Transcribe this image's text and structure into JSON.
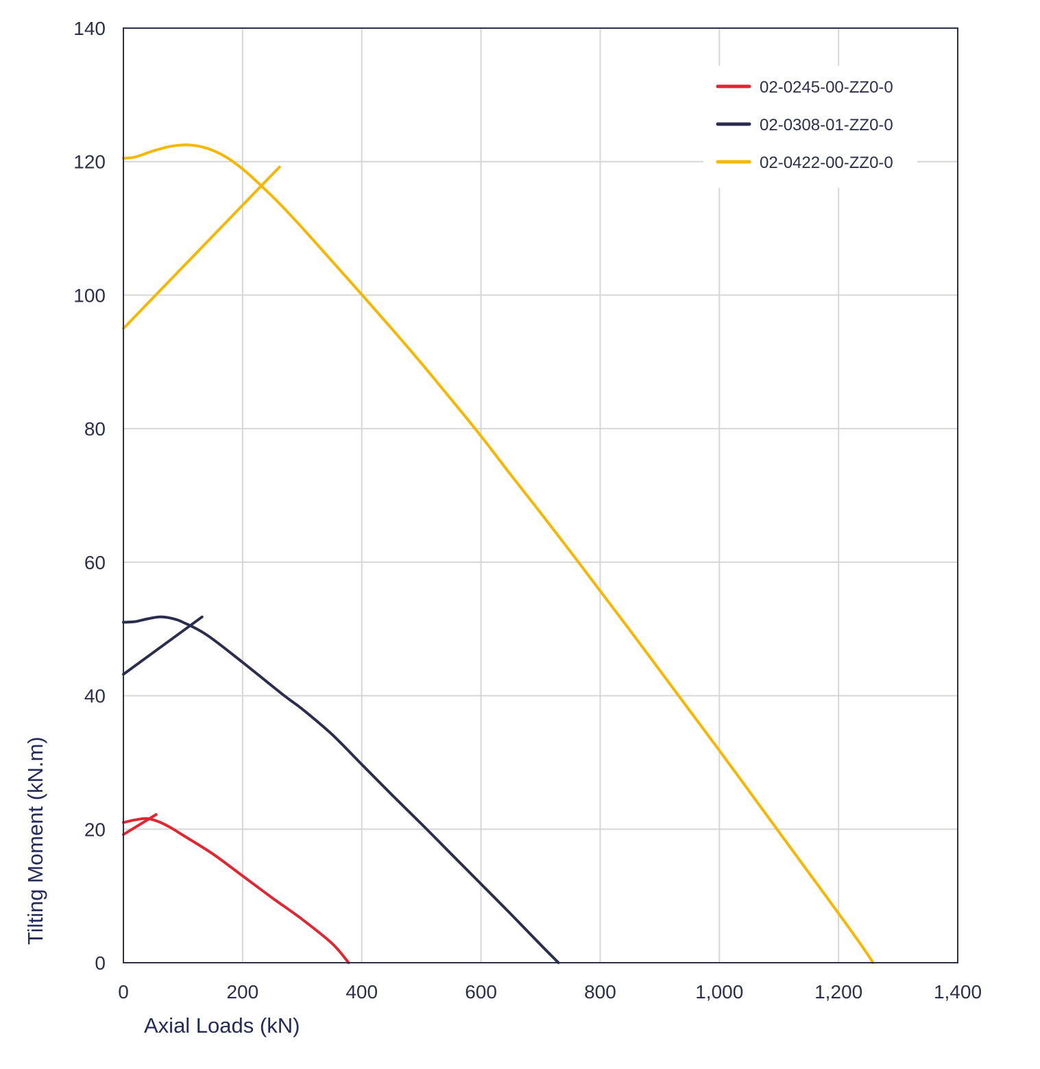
{
  "chart_data": {
    "type": "line",
    "title": "",
    "xlabel": "Axial Loads (kN)",
    "ylabel": "Tilting Moment (kN.m)",
    "xlim": [
      0,
      1400
    ],
    "ylim": [
      0,
      140
    ],
    "x_ticks": [
      "0",
      "200",
      "400",
      "600",
      "800",
      "1,000",
      "1,200",
      "1,400"
    ],
    "y_ticks": [
      "0",
      "20",
      "40",
      "60",
      "80",
      "100",
      "120",
      "140"
    ],
    "grid": true,
    "legend_position": "top-right",
    "series": [
      {
        "name": "02-0245-00-ZZ0-0",
        "color": "#e02630",
        "curve": [
          [
            0,
            21.0
          ],
          [
            20,
            21.4
          ],
          [
            40,
            21.6
          ],
          [
            60,
            21.1
          ],
          [
            80,
            20.2
          ],
          [
            100,
            19.1
          ],
          [
            150,
            16.3
          ],
          [
            200,
            13.0
          ],
          [
            250,
            9.7
          ],
          [
            300,
            6.5
          ],
          [
            350,
            2.9
          ],
          [
            378,
            0
          ]
        ],
        "limit_line": [
          [
            0,
            19.2
          ],
          [
            55,
            22.2
          ]
        ]
      },
      {
        "name": "02-0308-01-ZZ0-0",
        "color": "#2b2d4e",
        "curve": [
          [
            0,
            51.0
          ],
          [
            20,
            51.1
          ],
          [
            40,
            51.5
          ],
          [
            60,
            51.8
          ],
          [
            80,
            51.6
          ],
          [
            100,
            51.0
          ],
          [
            140,
            49.1
          ],
          [
            200,
            45.0
          ],
          [
            270,
            40.0
          ],
          [
            300,
            38.0
          ],
          [
            350,
            34.2
          ],
          [
            400,
            29.7
          ],
          [
            450,
            25.2
          ],
          [
            500,
            20.8
          ],
          [
            550,
            16.3
          ],
          [
            600,
            11.8
          ],
          [
            650,
            7.3
          ],
          [
            700,
            2.7
          ],
          [
            730,
            0
          ]
        ],
        "limit_line": [
          [
            0,
            43.2
          ],
          [
            132,
            51.8
          ]
        ]
      },
      {
        "name": "02-0422-00-ZZ0-0",
        "color": "#f5b700",
        "curve": [
          [
            0,
            120.5
          ],
          [
            20,
            120.7
          ],
          [
            50,
            121.6
          ],
          [
            80,
            122.3
          ],
          [
            110,
            122.5
          ],
          [
            140,
            122.0
          ],
          [
            170,
            120.8
          ],
          [
            200,
            118.9
          ],
          [
            230,
            116.5
          ],
          [
            260,
            113.9
          ],
          [
            300,
            110.1
          ],
          [
            350,
            105.1
          ],
          [
            400,
            100.1
          ],
          [
            450,
            95.0
          ],
          [
            500,
            89.8
          ],
          [
            550,
            84.4
          ],
          [
            600,
            78.9
          ],
          [
            650,
            73.1
          ],
          [
            700,
            67.4
          ],
          [
            750,
            61.6
          ],
          [
            800,
            55.7
          ],
          [
            850,
            49.8
          ],
          [
            900,
            43.8
          ],
          [
            950,
            37.8
          ],
          [
            1000,
            31.8
          ],
          [
            1050,
            25.7
          ],
          [
            1100,
            19.6
          ],
          [
            1150,
            13.5
          ],
          [
            1200,
            7.4
          ],
          [
            1240,
            2.4
          ],
          [
            1258,
            0
          ]
        ],
        "limit_line": [
          [
            0,
            95.0
          ],
          [
            262,
            119.2
          ]
        ]
      }
    ]
  }
}
